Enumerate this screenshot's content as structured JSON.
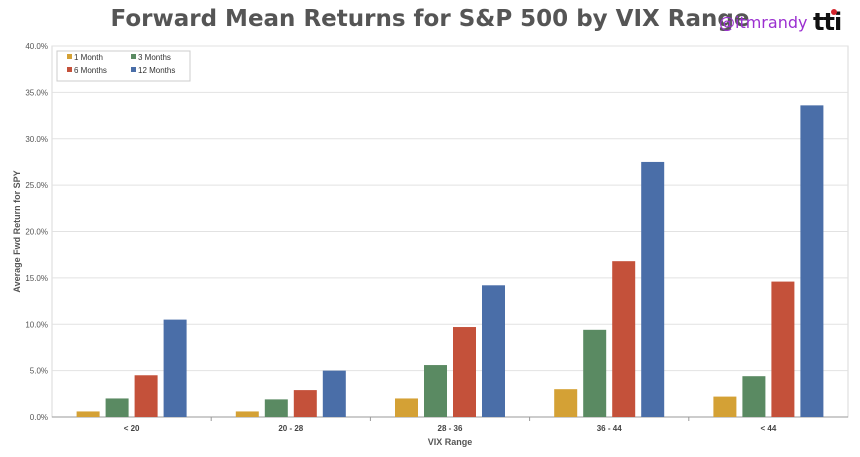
{
  "header": {
    "title": "Forward Mean Returns for S&P 500 by VIX Range",
    "handle": "@itmrandy",
    "logo_text": "tti"
  },
  "chart_data": {
    "type": "bar",
    "title": "Forward Mean Returns for S&P 500 by VIX Range",
    "xlabel": "VIX Range",
    "ylabel": "Average Fwd Return for SPY",
    "categories": [
      "< 20",
      "20 - 28",
      "28 - 36",
      "36 - 44",
      "< 44"
    ],
    "ylim": [
      0,
      40
    ],
    "yticks": [
      "0.0%",
      "5.0%",
      "10.0%",
      "15.0%",
      "20.0%",
      "25.0%",
      "30.0%",
      "35.0%",
      "40.0%"
    ],
    "grid": true,
    "legend_position": "top-left",
    "series": [
      {
        "name": "1 Month",
        "color": "#d4a135",
        "values": [
          0.6,
          0.6,
          2.0,
          3.0,
          2.2
        ]
      },
      {
        "name": "3 Months",
        "color": "#5a8a62",
        "values": [
          2.0,
          1.9,
          5.6,
          9.4,
          4.4
        ]
      },
      {
        "name": "6 Months",
        "color": "#c4513a",
        "values": [
          4.5,
          2.9,
          9.7,
          16.8,
          14.6
        ]
      },
      {
        "name": "12 Months",
        "color": "#4a6ea8",
        "values": [
          10.5,
          5.0,
          14.2,
          27.5,
          33.6
        ]
      }
    ]
  }
}
